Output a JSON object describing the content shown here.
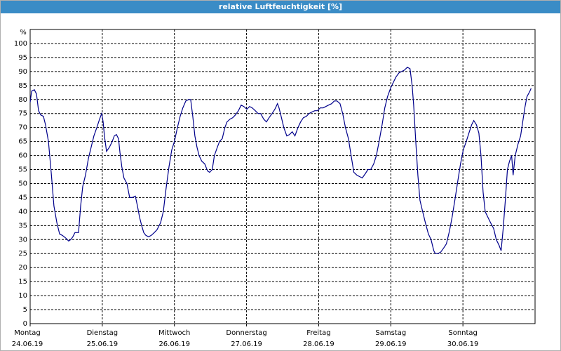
{
  "window_title": "relative Luftfeuchtigkeit [%]",
  "chart_data": {
    "type": "line",
    "y_unit": "%",
    "x": [
      0,
      0.5,
      1.4,
      2.1,
      2.8,
      3.5,
      4.4,
      5.1,
      6.1,
      7.0,
      7.9,
      8.9,
      9.8,
      10.7,
      11.9,
      12.8,
      13.5,
      14.2,
      14.9,
      16.1,
      16.8,
      17.5,
      18.4,
      19.4,
      20.3,
      21.2,
      22.2,
      23.1,
      23.8,
      24.3,
      24.7,
      25.4,
      26.4,
      27.3,
      28.0,
      28.7,
      29.4,
      29.9,
      30.5,
      31.2,
      32.2,
      33.1,
      34.0,
      35.0,
      35.7,
      36.4,
      37.1,
      37.8,
      38.5,
      39.4,
      40.3,
      41.3,
      42.2,
      43.4,
      44.3,
      45.2,
      46.2,
      47.1,
      48.0,
      49.0,
      49.9,
      50.8,
      51.8,
      52.7,
      53.4,
      54.1,
      54.8,
      55.5,
      56.2,
      57.1,
      58.1,
      59.0,
      59.7,
      60.6,
      61.3,
      62.3,
      63.0,
      63.9,
      64.8,
      65.5,
      66.5,
      67.4,
      68.3,
      69.3,
      70.2,
      71.1,
      72.1,
      73.0,
      73.9,
      74.9,
      75.8,
      76.7,
      77.7,
      78.6,
      79.5,
      80.5,
      81.4,
      82.3,
      82.8,
      83.5,
      84.4,
      85.4,
      86.3,
      87.2,
      88.1,
      89.1,
      90.0,
      90.9,
      91.9,
      92.8,
      93.7,
      94.7,
      95.6,
      96.5,
      97.5,
      98.4,
      99.3,
      100.3,
      101.2,
      102.1,
      103.1,
      104.0,
      104.9,
      105.9,
      106.8,
      107.7,
      108.7,
      109.6,
      110.5,
      111.5,
      112.4,
      113.3,
      114.3,
      115.2,
      116.1,
      117.1,
      118.0,
      118.9,
      119.9,
      120.8,
      121.7,
      122.7,
      123.6,
      124.5,
      125.5,
      126.4,
      127.1,
      127.6,
      128.3,
      129.0,
      129.7,
      130.6,
      131.5,
      132.5,
      133.4,
      134.3,
      134.8,
      135.7,
      136.6,
      137.6,
      138.5,
      139.5,
      140.4,
      141.3,
      142.3,
      143.2,
      144.1,
      145.1,
      146.0,
      146.9,
      147.6,
      148.5,
      149.3,
      150.0,
      150.7,
      151.4,
      152.3,
      153.2,
      154.2,
      155.1,
      156.0,
      156.7,
      157.4,
      158.1,
      158.8,
      159.5,
      160.2,
      160.7,
      161.4,
      162.3,
      163.2,
      163.9,
      164.6,
      165.3,
      166.3,
      166.7
    ],
    "series": [
      {
        "color": "#00008b",
        "values": [
          79,
          83,
          83.5,
          82,
          76,
          74.5,
          74,
          71,
          65,
          54,
          42,
          36,
          32,
          31.5,
          30.5,
          29.5,
          30,
          31,
          32.5,
          32.5,
          42,
          49,
          53,
          59,
          63,
          67,
          70,
          73,
          75,
          72,
          67,
          61.5,
          63,
          65,
          67,
          67.5,
          66,
          61,
          56,
          52,
          50,
          45,
          45,
          45.5,
          42,
          38,
          35,
          32.5,
          31.5,
          31,
          31.5,
          32.5,
          33.5,
          36,
          40,
          48,
          56,
          62,
          65,
          70,
          74,
          77,
          79.5,
          80,
          80,
          74,
          67,
          63,
          60,
          58,
          57,
          54.5,
          54,
          55,
          60,
          63,
          65,
          66,
          70,
          72,
          73,
          73.5,
          74.5,
          76,
          78,
          77.5,
          76.5,
          77.5,
          77,
          76,
          75,
          75,
          73,
          72,
          73.5,
          75,
          76.5,
          78.5,
          77,
          74,
          70,
          67,
          67.5,
          68.5,
          67,
          70,
          72,
          73.5,
          74,
          75,
          75.5,
          76,
          76,
          77,
          77,
          77.5,
          78,
          78.5,
          79.5,
          79.5,
          78.5,
          75,
          70,
          66,
          60,
          54,
          53,
          52.5,
          52,
          53.5,
          55,
          55,
          57,
          60,
          65,
          71,
          77,
          81,
          84,
          86,
          88,
          89.5,
          90,
          90.5,
          91.5,
          91,
          85,
          78,
          65,
          53,
          44,
          40,
          36,
          32,
          30,
          26,
          25,
          25,
          25.5,
          27,
          28.5,
          33,
          38,
          44,
          51,
          57,
          62,
          65,
          68,
          71,
          72.5,
          71,
          68,
          60,
          47,
          40,
          38,
          36,
          34,
          30,
          28,
          26,
          34,
          44,
          55,
          58,
          60,
          53,
          60,
          64,
          67,
          72,
          77,
          81,
          83,
          84
        ]
      }
    ],
    "xlim": [
      0,
      168
    ],
    "xticks": [
      {
        "value": 0,
        "label": "Montag"
      },
      {
        "value": 24,
        "label": "Dienstag"
      },
      {
        "value": 48,
        "label": "Mittwoch"
      },
      {
        "value": 72,
        "label": "Donnerstag"
      },
      {
        "value": 96,
        "label": "Freitag"
      },
      {
        "value": 120,
        "label": "Samstag"
      },
      {
        "value": 144,
        "label": "Sonntag"
      }
    ],
    "xtick_dates": [
      "24.06.19",
      "25.06.19",
      "26.06.19",
      "27.06.19",
      "28.06.19",
      "29.06.19",
      "30.06.19"
    ],
    "ylim": [
      0,
      105
    ],
    "yticks": [
      0,
      5,
      10,
      15,
      20,
      25,
      30,
      35,
      40,
      45,
      50,
      55,
      60,
      65,
      70,
      75,
      80,
      85,
      90,
      95,
      100
    ],
    "grid": true
  }
}
